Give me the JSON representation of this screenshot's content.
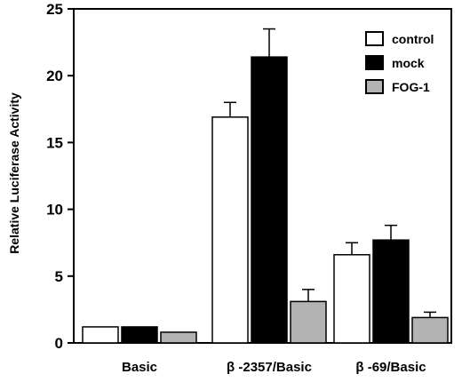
{
  "chart_data": {
    "type": "bar",
    "title": "",
    "xlabel": "",
    "ylabel": "Relative Luciferase Activity",
    "categories": [
      "Basic",
      "β -2357/Basic",
      "β -69/Basic"
    ],
    "series": [
      {
        "name": "control",
        "color": "#ffffff",
        "values": [
          1.2,
          16.9,
          6.6
        ],
        "errors": [
          0.0,
          1.1,
          0.9
        ]
      },
      {
        "name": "mock",
        "color": "#000000",
        "values": [
          1.2,
          21.4,
          7.7
        ],
        "errors": [
          0.0,
          2.1,
          1.1
        ]
      },
      {
        "name": "FOG-1",
        "color": "#b3b3b3",
        "values": [
          0.8,
          3.1,
          1.9
        ],
        "errors": [
          0.0,
          0.9,
          0.4
        ]
      }
    ],
    "ylim": [
      0,
      25
    ],
    "yticks": [
      0,
      5,
      10,
      15,
      20,
      25
    ],
    "legend_position": "top-right",
    "grid": false
  }
}
